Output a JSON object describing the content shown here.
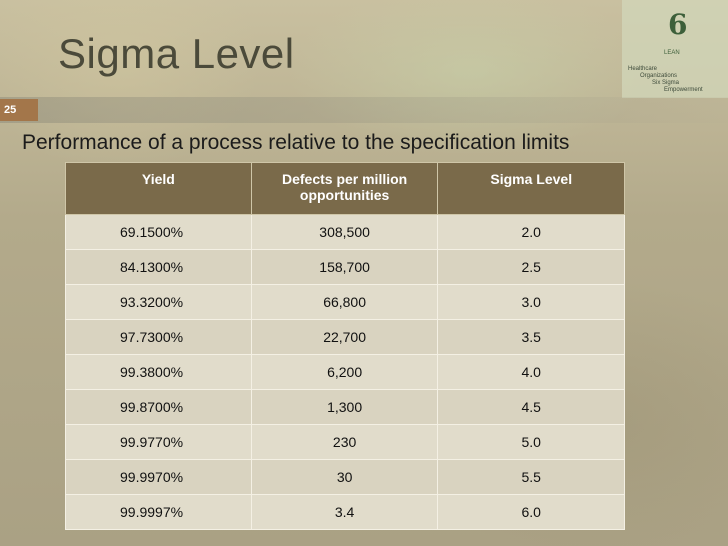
{
  "slide": {
    "title": "Sigma Level",
    "page_number": "25",
    "subtitle": "Performance of a process relative to the specification limits"
  },
  "logo": {
    "symbol": "6",
    "tagline": "LEAN",
    "acronym_lines": [
      "Healthcare",
      "Organizations",
      "Six Sigma",
      "Empowerment"
    ]
  },
  "table": {
    "headers": [
      "Yield",
      "Defects per million opportunities",
      "Sigma Level"
    ],
    "rows": [
      [
        "69.1500%",
        "308,500",
        "2.0"
      ],
      [
        "84.1300%",
        "158,700",
        "2.5"
      ],
      [
        "93.3200%",
        "66,800",
        "3.0"
      ],
      [
        "97.7300%",
        "22,700",
        "3.5"
      ],
      [
        "99.3800%",
        "6,200",
        "4.0"
      ],
      [
        "99.8700%",
        "1,300",
        "4.5"
      ],
      [
        "99.9770%",
        "230",
        "5.0"
      ],
      [
        "99.9970%",
        "30",
        "5.5"
      ],
      [
        "99.9997%",
        "3.4",
        "6.0"
      ]
    ]
  },
  "colors": {
    "header_fill": "#7a6a4a",
    "row_fill": "#e1dccb",
    "page_badge": "#a3764a"
  }
}
